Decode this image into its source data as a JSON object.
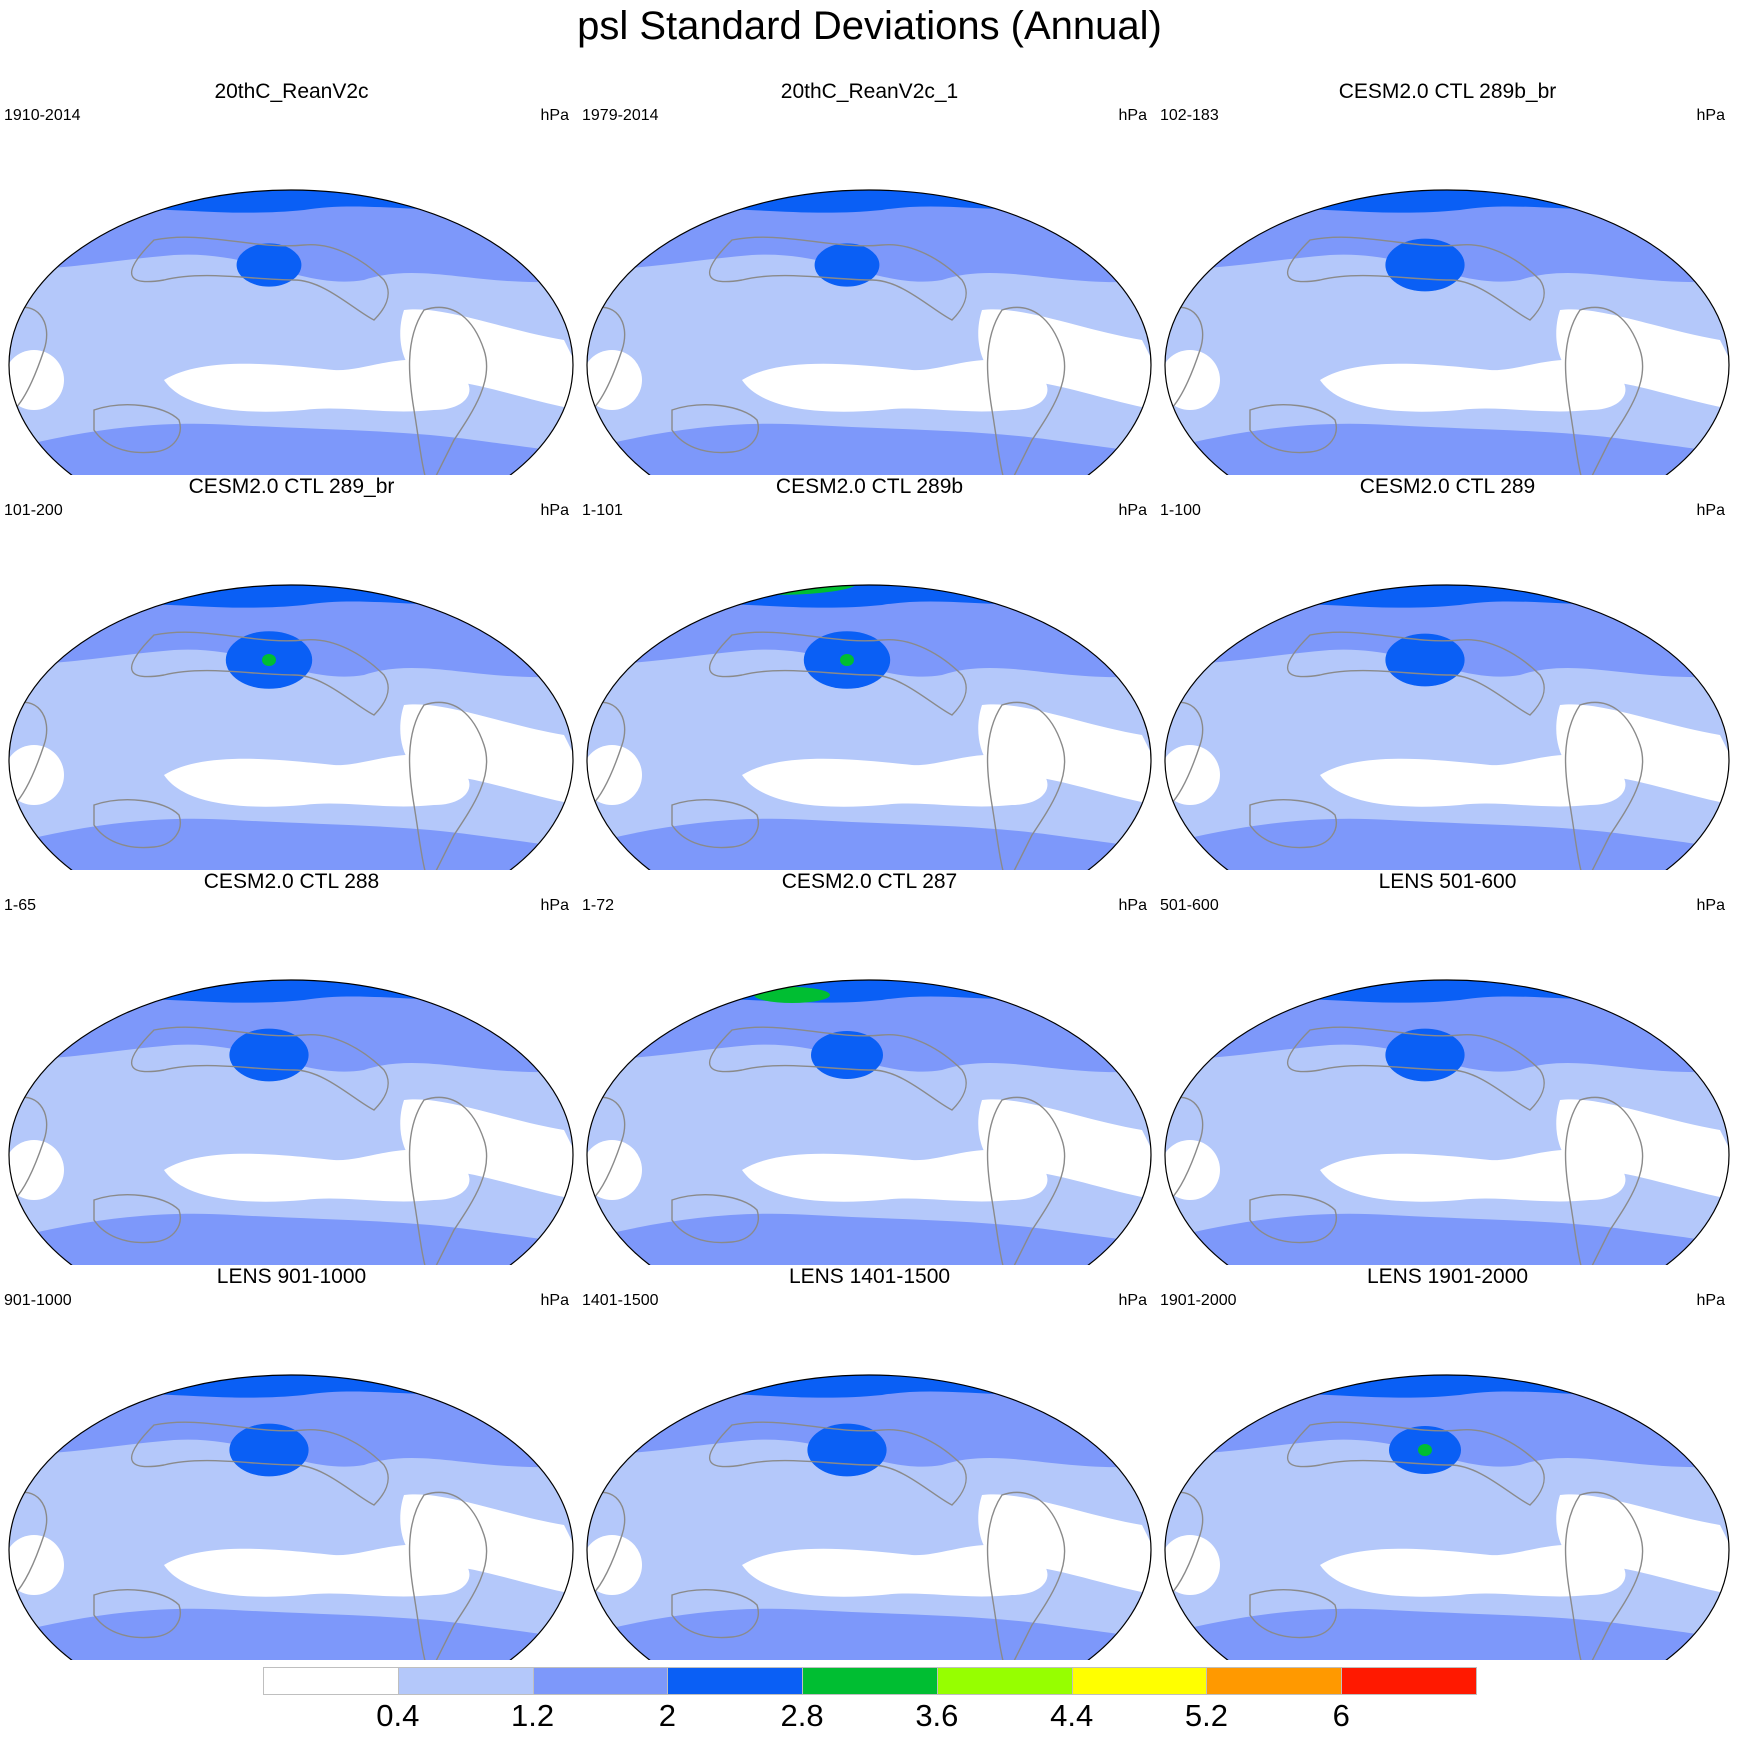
{
  "title": "psl Standard Deviations (Annual)",
  "colorbar": {
    "colors": [
      "#ffffff",
      "#b4c8fa",
      "#7d98fa",
      "#0a5ff5",
      "#00be32",
      "#96ff00",
      "#ffff00",
      "#ff9900",
      "#ff1900"
    ],
    "labels": [
      "0.4",
      "1.2",
      "2",
      "2.8",
      "3.6",
      "4.4",
      "5.2",
      "6"
    ]
  },
  "panels": [
    {
      "title": "20thC_ReanV2c",
      "left": "1910-2014",
      "right": "hPa"
    },
    {
      "title": "20thC_ReanV2c_1",
      "left": "1979-2014",
      "right": "hPa"
    },
    {
      "title": "CESM2.0 CTL 289b_br",
      "left": "102-183",
      "right": "hPa"
    },
    {
      "title": "CESM2.0 CTL 289_br",
      "left": "101-200",
      "right": "hPa"
    },
    {
      "title": "CESM2.0 CTL 289b",
      "left": "1-101",
      "right": "hPa"
    },
    {
      "title": "CESM2.0 CTL 289",
      "left": "1-100",
      "right": "hPa"
    },
    {
      "title": "CESM2.0 CTL 288",
      "left": "1-65",
      "right": "hPa"
    },
    {
      "title": "CESM2.0 CTL 287",
      "left": "1-72",
      "right": "hPa"
    },
    {
      "title": "LENS 501-600",
      "left": "501-600",
      "right": "hPa"
    },
    {
      "title": "LENS 901-1000",
      "left": "901-1000",
      "right": "hPa"
    },
    {
      "title": "LENS 1401-1500",
      "left": "1401-1500",
      "right": "hPa"
    },
    {
      "title": "LENS 1901-2000",
      "left": "1901-2000",
      "right": "hPa"
    }
  ]
}
